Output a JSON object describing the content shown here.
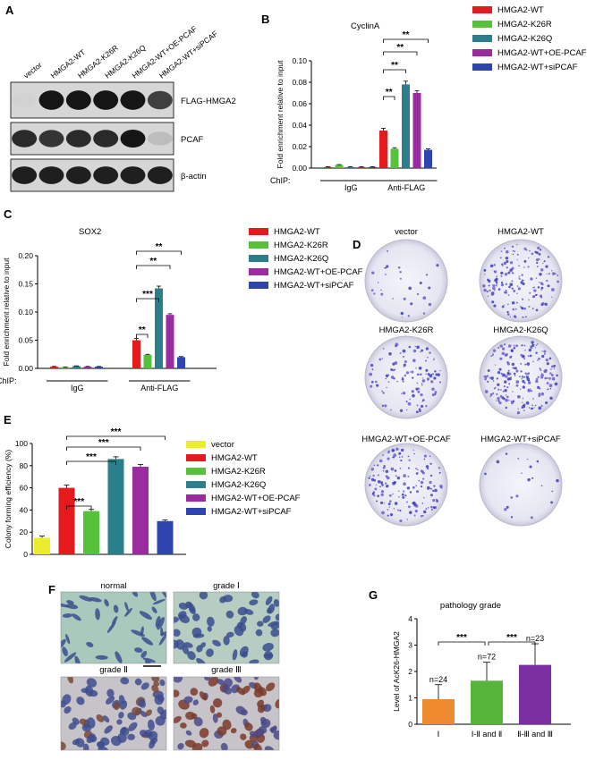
{
  "figure": {
    "panel_labels": [
      "A",
      "B",
      "C",
      "D",
      "E",
      "F",
      "G"
    ],
    "colors": {
      "wt": "#e41a1c",
      "k26r": "#55c239",
      "k26q": "#2a7f8a",
      "oe": "#9b2ca0",
      "si": "#2e45b0",
      "vector": "#ecec2e",
      "g1": "#f08a2e",
      "g2": "#55b43a",
      "g3": "#7b2fa0"
    }
  },
  "panelA": {
    "lanes": [
      "vector",
      "HMGA2-WT",
      "HMGA2-K26R",
      "HMGA2-K26Q",
      "HMGA2-WT+OE-PCAF",
      "HMGA2-WT+siPCAF"
    ],
    "blots": [
      {
        "label": "FLAG-HMGA2",
        "intensity": [
          0.05,
          0.95,
          0.95,
          0.95,
          0.95,
          0.75
        ]
      },
      {
        "label": "PCAF",
        "intensity": [
          0.85,
          0.8,
          0.85,
          0.85,
          0.95,
          0.15
        ]
      },
      {
        "label": "β-actin",
        "intensity": [
          0.9,
          0.9,
          0.9,
          0.9,
          0.9,
          0.9
        ]
      }
    ]
  },
  "panelB": {
    "chart_data": {
      "type": "bar",
      "title": "CyclinA",
      "ylabel": "Fold enrichment relative to input",
      "ylim": [
        0,
        0.1
      ],
      "yticks": [
        "0.00",
        "0.02",
        "0.04",
        "0.06",
        "0.08",
        "0.10"
      ],
      "chip_label": "ChIP:",
      "groups": [
        "IgG",
        "Anti-FLAG"
      ],
      "series": [
        {
          "name": "HMGA2-WT",
          "values": [
            0.001,
            0.035
          ],
          "errors": [
            0.0003,
            0.002
          ]
        },
        {
          "name": "HMGA2-K26R",
          "values": [
            0.003,
            0.018
          ],
          "errors": [
            0.0003,
            0.001
          ]
        },
        {
          "name": "HMGA2-K26Q",
          "values": [
            0.001,
            0.078
          ],
          "errors": [
            0.0003,
            0.003
          ]
        },
        {
          "name": "HMGA2-WT+OE-PCAF",
          "values": [
            0.001,
            0.07
          ],
          "errors": [
            0.0003,
            0.002
          ]
        },
        {
          "name": "HMGA2-WT+siPCAF",
          "values": [
            0.001,
            0.017
          ],
          "errors": [
            0.0003,
            0.001
          ]
        }
      ],
      "significance": [
        {
          "from": 0,
          "to": 1,
          "label": "**"
        },
        {
          "from": 0,
          "to": 2,
          "label": "**"
        },
        {
          "from": 0,
          "to": 3,
          "label": "**"
        },
        {
          "from": 0,
          "to": 4,
          "label": "**"
        }
      ]
    }
  },
  "panelC": {
    "chart_data": {
      "type": "bar",
      "title": "SOX2",
      "ylabel": "Fold enrichment relative to input",
      "ylim": [
        0,
        0.2
      ],
      "yticks": [
        "0.00",
        "0.05",
        "0.10",
        "0.15",
        "0.20"
      ],
      "chip_label": "ChIP:",
      "groups": [
        "IgG",
        "Anti-FLAG"
      ],
      "series": [
        {
          "name": "HMGA2-WT",
          "values": [
            0.003,
            0.05
          ],
          "errors": [
            0.0005,
            0.003
          ]
        },
        {
          "name": "HMGA2-K26R",
          "values": [
            0.002,
            0.024
          ],
          "errors": [
            0.0005,
            0.001
          ]
        },
        {
          "name": "HMGA2-K26Q",
          "values": [
            0.004,
            0.142
          ],
          "errors": [
            0.0005,
            0.004
          ]
        },
        {
          "name": "HMGA2-WT+OE-PCAF",
          "values": [
            0.003,
            0.095
          ],
          "errors": [
            0.0005,
            0.002
          ]
        },
        {
          "name": "HMGA2-WT+siPCAF",
          "values": [
            0.003,
            0.02
          ],
          "errors": [
            0.0005,
            0.001
          ]
        }
      ],
      "significance": [
        {
          "from": 0,
          "to": 1,
          "label": "**"
        },
        {
          "from": 0,
          "to": 2,
          "label": "***"
        },
        {
          "from": 0,
          "to": 3,
          "label": "**"
        },
        {
          "from": 0,
          "to": 4,
          "label": "**"
        }
      ]
    }
  },
  "panelD": {
    "dishes": [
      {
        "label": "vector",
        "density": 30
      },
      {
        "label": "HMGA2-WT",
        "density": 160
      },
      {
        "label": "HMGA2-K26R",
        "density": 110
      },
      {
        "label": "HMGA2-K26Q",
        "density": 200
      },
      {
        "label": "HMGA2-WT+OE-PCAF",
        "density": 150
      },
      {
        "label": "HMGA2-WT+siPCAF",
        "density": 20
      }
    ]
  },
  "panelE": {
    "chart_data": {
      "type": "bar",
      "ylabel": "Colony forming efficiency (%)",
      "ylim": [
        0,
        100
      ],
      "yticks": [
        "0",
        "20",
        "40",
        "60",
        "80",
        "100"
      ],
      "categories": [
        "vector",
        "HMGA2-WT",
        "HMGA2-K26R",
        "HMGA2-K26Q",
        "HMGA2-WT+OE-PCAF",
        "HMGA2-WT+siPCAF"
      ],
      "values": [
        15,
        60,
        39,
        86,
        79,
        30
      ],
      "errors": [
        1.5,
        2.5,
        1.5,
        2,
        2,
        1
      ],
      "significance": [
        {
          "from": 1,
          "to": 2,
          "label": "***"
        },
        {
          "from": 1,
          "to": 3,
          "label": "***"
        },
        {
          "from": 1,
          "to": 4,
          "label": "***"
        },
        {
          "from": 1,
          "to": 5,
          "label": "***"
        }
      ]
    }
  },
  "panelF": {
    "images": [
      {
        "label": "normal",
        "stain": "low"
      },
      {
        "label": "grade Ⅰ",
        "stain": "low"
      },
      {
        "label": "grade Ⅱ",
        "stain": "mid"
      },
      {
        "label": "grade Ⅲ",
        "stain": "high"
      }
    ]
  },
  "panelG": {
    "chart_data": {
      "type": "bar",
      "title": "pathology grade",
      "ylabel": "Level of AcK26-HMGA2",
      "ylim": [
        0,
        4
      ],
      "yticks": [
        "0",
        "1",
        "2",
        "3",
        "4"
      ],
      "categories": [
        "Ⅰ",
        "Ⅰ-Ⅱ and Ⅱ",
        "Ⅱ-Ⅲ and Ⅲ"
      ],
      "values": [
        0.95,
        1.65,
        2.25
      ],
      "errors": [
        0.55,
        0.7,
        0.8
      ],
      "n_labels": [
        "n=24",
        "n=72",
        "n=23"
      ],
      "significance": [
        {
          "from": 0,
          "to": 1,
          "label": "***"
        },
        {
          "from": 1,
          "to": 2,
          "label": "***"
        }
      ]
    }
  }
}
